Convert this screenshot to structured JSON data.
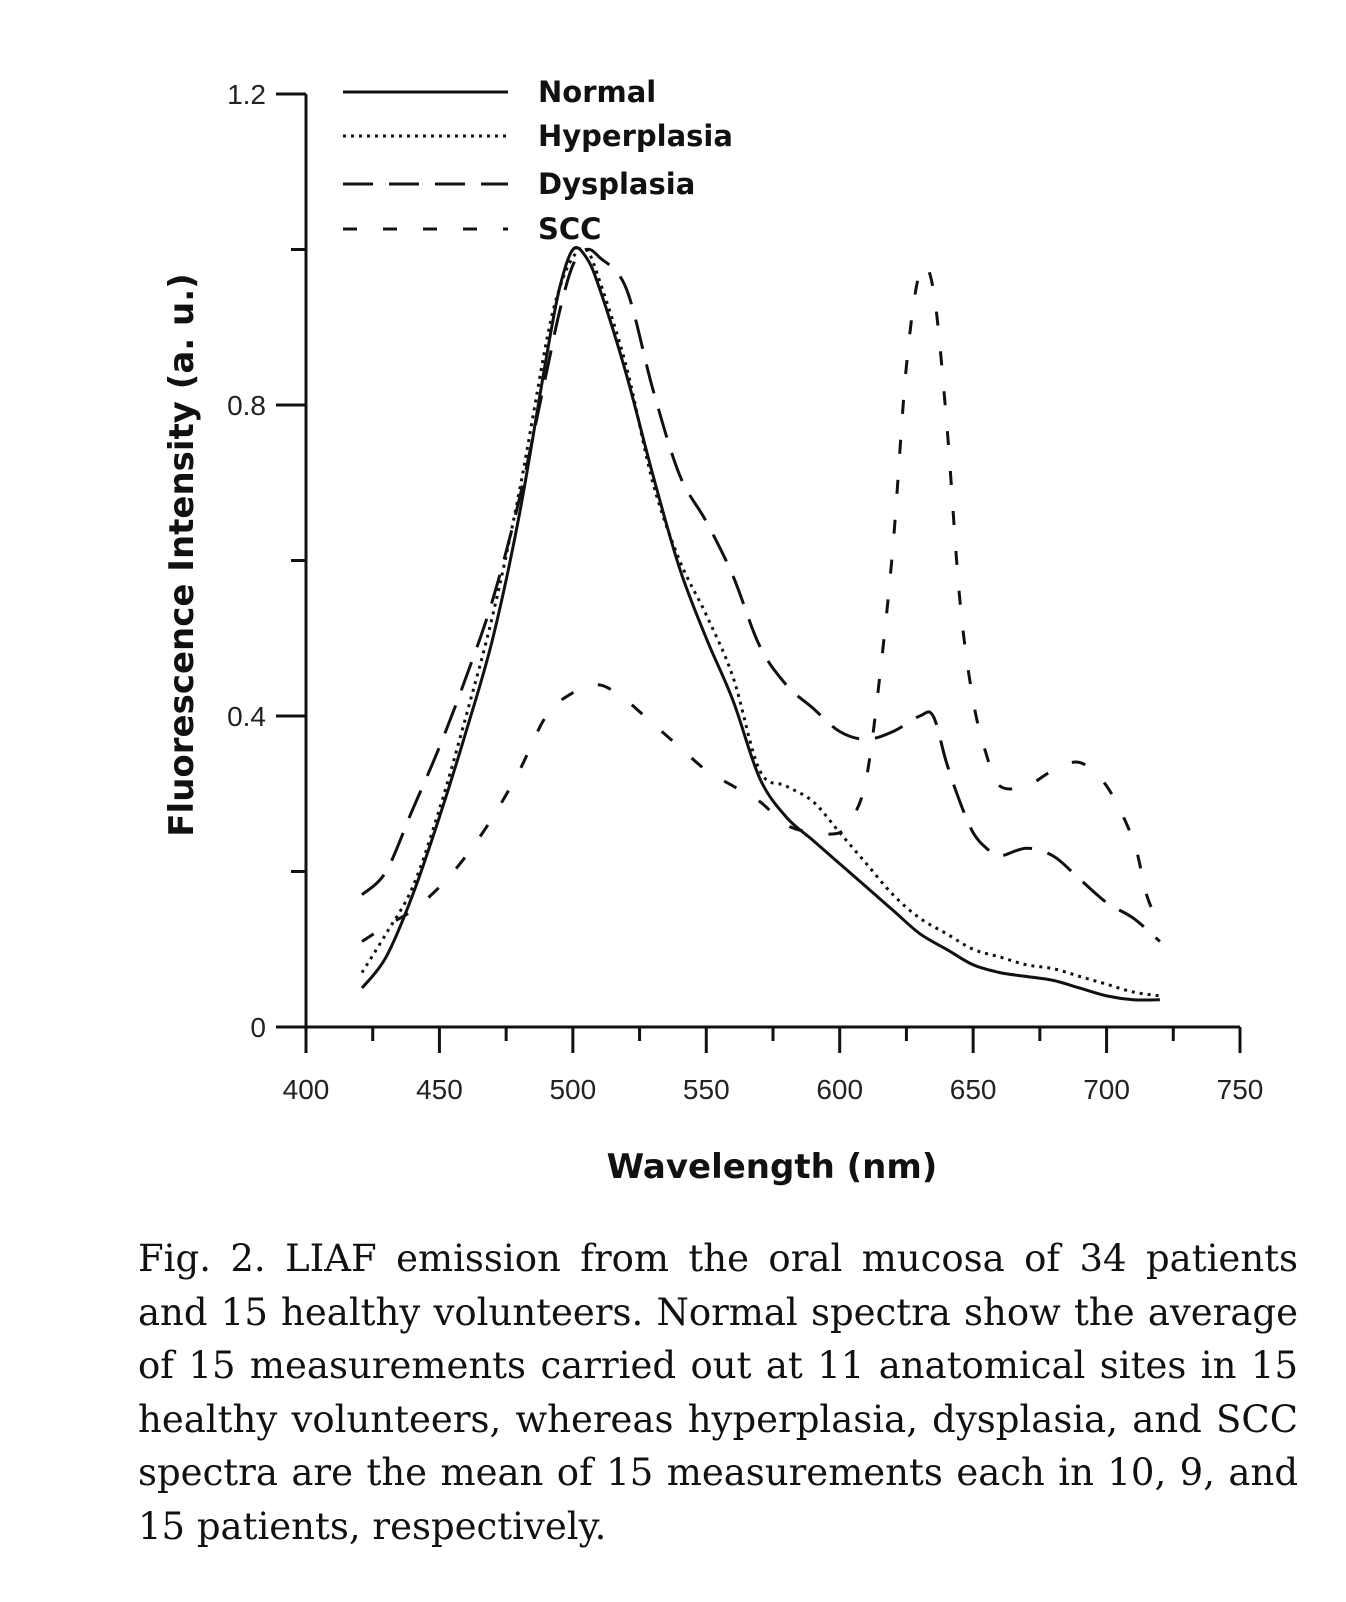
{
  "caption": "Fig. 2. LIAF emission from the oral mucosa of 34 patients and 15 healthy volunteers. Normal spectra show the average of 15 measurements carried out at 11 anatomical sites in 15 healthy volunteers, whereas hyperplasia, dysplasia, and SCC spectra are the mean of 15 measurements each in 10, 9, and 15 patients, respectively.",
  "chart_data": {
    "type": "line",
    "xlabel": "Wavelength (nm)",
    "ylabel": "Fluorescence Intensity (a. u.)",
    "xlim": [
      400,
      750
    ],
    "ylim": [
      0,
      1.2
    ],
    "x_major_ticks": [
      400,
      450,
      500,
      550,
      600,
      650,
      700,
      750
    ],
    "y_major_ticks": [
      0,
      0.4,
      0.8,
      1.2
    ],
    "y_minor_ticks": [
      0.2,
      0.6,
      1.0
    ],
    "legend_position": "top-left",
    "grid": false,
    "series": [
      {
        "name": "Normal",
        "style": "solid",
        "x": [
          421,
          430,
          440,
          450,
          460,
          470,
          480,
          490,
          495,
          500,
          505,
          510,
          520,
          530,
          540,
          550,
          560,
          570,
          580,
          590,
          600,
          610,
          620,
          630,
          640,
          650,
          660,
          670,
          680,
          690,
          700,
          710,
          720
        ],
        "y": [
          0.05,
          0.09,
          0.17,
          0.27,
          0.38,
          0.5,
          0.66,
          0.86,
          0.95,
          1.0,
          0.99,
          0.95,
          0.84,
          0.71,
          0.59,
          0.5,
          0.42,
          0.32,
          0.27,
          0.24,
          0.21,
          0.18,
          0.15,
          0.12,
          0.1,
          0.08,
          0.07,
          0.065,
          0.06,
          0.05,
          0.04,
          0.035,
          0.035
        ]
      },
      {
        "name": "Hyperplasia",
        "style": "dotted",
        "x": [
          421,
          430,
          440,
          450,
          460,
          470,
          480,
          490,
          495,
          500,
          505,
          510,
          520,
          530,
          540,
          550,
          560,
          570,
          580,
          590,
          600,
          610,
          620,
          630,
          640,
          650,
          660,
          670,
          680,
          690,
          700,
          710,
          720
        ],
        "y": [
          0.07,
          0.12,
          0.18,
          0.28,
          0.4,
          0.53,
          0.69,
          0.88,
          0.95,
          0.99,
          1.0,
          0.96,
          0.85,
          0.7,
          0.6,
          0.53,
          0.45,
          0.33,
          0.31,
          0.29,
          0.25,
          0.21,
          0.17,
          0.14,
          0.12,
          0.1,
          0.09,
          0.08,
          0.075,
          0.065,
          0.055,
          0.045,
          0.04
        ]
      },
      {
        "name": "Dysplasia",
        "style": "long-dash",
        "x": [
          421,
          430,
          440,
          450,
          460,
          470,
          480,
          490,
          495,
          500,
          505,
          510,
          520,
          530,
          540,
          550,
          560,
          570,
          580,
          590,
          600,
          610,
          620,
          630,
          635,
          640,
          645,
          650,
          655,
          660,
          670,
          680,
          690,
          700,
          710,
          720
        ],
        "y": [
          0.17,
          0.2,
          0.28,
          0.36,
          0.45,
          0.55,
          0.68,
          0.84,
          0.92,
          0.98,
          1.0,
          0.99,
          0.95,
          0.82,
          0.71,
          0.65,
          0.58,
          0.49,
          0.44,
          0.41,
          0.38,
          0.37,
          0.38,
          0.4,
          0.4,
          0.34,
          0.29,
          0.25,
          0.23,
          0.22,
          0.23,
          0.22,
          0.19,
          0.16,
          0.14,
          0.11
        ]
      },
      {
        "name": "SCC",
        "style": "short-dash",
        "x": [
          421,
          430,
          440,
          450,
          460,
          470,
          480,
          490,
          500,
          510,
          520,
          530,
          540,
          550,
          560,
          570,
          580,
          590,
          600,
          605,
          610,
          615,
          620,
          625,
          630,
          635,
          640,
          645,
          650,
          655,
          660,
          670,
          680,
          690,
          700,
          710,
          715,
          720
        ],
        "y": [
          0.11,
          0.13,
          0.15,
          0.18,
          0.22,
          0.27,
          0.33,
          0.4,
          0.43,
          0.44,
          0.42,
          0.39,
          0.36,
          0.33,
          0.31,
          0.29,
          0.26,
          0.25,
          0.25,
          0.27,
          0.32,
          0.45,
          0.62,
          0.85,
          0.97,
          0.95,
          0.78,
          0.55,
          0.42,
          0.35,
          0.31,
          0.31,
          0.33,
          0.34,
          0.31,
          0.24,
          0.17,
          0.13
        ]
      }
    ]
  }
}
